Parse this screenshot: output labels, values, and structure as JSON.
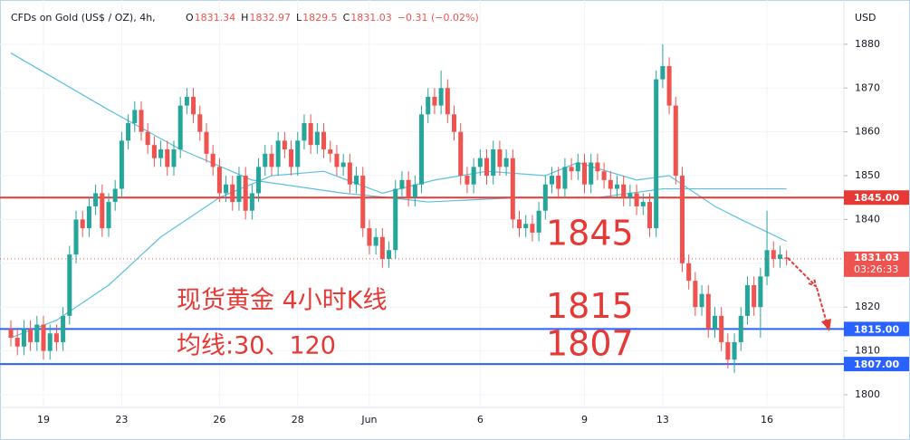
{
  "chart_data": {
    "type": "candlestick",
    "title": "CFDs on Gold (US$ / OZ), 4h,",
    "ohlc_labels": [
      "O",
      "H",
      "L",
      "C"
    ],
    "change": "−0.31 (−0.02%)",
    "y_unit": "USD",
    "up_color": "#26a69a",
    "down_color": "#ef5350",
    "xlim": [
      -1.67,
      127.8
    ],
    "ylim": [
      1797.1,
      1890.1
    ],
    "yticks": [
      1800,
      1810,
      1820,
      1830,
      1840,
      1850,
      1860,
      1870,
      1880
    ],
    "xticks": [
      {
        "value": 5,
        "label": "19"
      },
      {
        "value": 17,
        "label": "23"
      },
      {
        "value": 32,
        "label": "26"
      },
      {
        "value": 44,
        "label": "28"
      },
      {
        "value": 55,
        "label": "Jun"
      },
      {
        "value": 72,
        "label": "6"
      },
      {
        "value": 88,
        "label": "9"
      },
      {
        "value": 100,
        "label": "13"
      },
      {
        "value": 116,
        "label": "16"
      }
    ],
    "grid": true,
    "candles": {
      "open": [
        1815,
        1813,
        1811,
        1815,
        1812,
        1816,
        1810,
        1814,
        1812,
        1818,
        1832,
        1840,
        1838,
        1843,
        1846,
        1838,
        1844,
        1847,
        1858,
        1862,
        1865,
        1860,
        1857,
        1854,
        1856,
        1852,
        1856,
        1866,
        1868,
        1864,
        1860,
        1855,
        1852,
        1846,
        1848,
        1844,
        1850,
        1842,
        1846,
        1852,
        1855,
        1852,
        1858,
        1856,
        1852,
        1858,
        1862,
        1857,
        1860,
        1856,
        1855,
        1852,
        1853,
        1848,
        1850,
        1838,
        1834,
        1836,
        1831,
        1833,
        1847,
        1849,
        1845,
        1848,
        1864,
        1868,
        1866,
        1870,
        1864,
        1860,
        1850,
        1848,
        1852,
        1854,
        1850,
        1856,
        1852,
        1854,
        1840,
        1838,
        1839,
        1837,
        1842,
        1848,
        1850,
        1847,
        1852,
        1851,
        1853,
        1848,
        1853,
        1851,
        1849,
        1847,
        1848,
        1845,
        1846,
        1843,
        1844,
        1838,
        1872,
        1875,
        1866,
        1850,
        1830,
        1826,
        1820,
        1823,
        1815,
        1818,
        1812,
        1808,
        1812,
        1818,
        1825,
        1820,
        1827,
        1833,
        1831,
        1831.34
      ],
      "high": [
        1817,
        1815,
        1817,
        1817,
        1818,
        1818,
        1816,
        1816,
        1820,
        1834,
        1842,
        1842,
        1845,
        1848,
        1848,
        1846,
        1849,
        1860,
        1864,
        1867,
        1867,
        1862,
        1859,
        1858,
        1858,
        1858,
        1868,
        1870,
        1870,
        1866,
        1862,
        1857,
        1854,
        1850,
        1850,
        1852,
        1852,
        1848,
        1854,
        1857,
        1857,
        1860,
        1860,
        1858,
        1860,
        1864,
        1864,
        1862,
        1862,
        1858,
        1857,
        1855,
        1855,
        1852,
        1852,
        1840,
        1838,
        1838,
        1835,
        1849,
        1851,
        1851,
        1850,
        1866,
        1870,
        1870,
        1874,
        1872,
        1866,
        1862,
        1852,
        1854,
        1856,
        1856,
        1858,
        1858,
        1856,
        1856,
        1842,
        1841,
        1841,
        1844,
        1850,
        1852,
        1852,
        1854,
        1854,
        1855,
        1855,
        1855,
        1855,
        1853,
        1851,
        1850,
        1850,
        1848,
        1848,
        1846,
        1846,
        1874,
        1880,
        1877,
        1868,
        1852,
        1832,
        1828,
        1825,
        1825,
        1820,
        1820,
        1814,
        1814,
        1820,
        1827,
        1827,
        1829,
        1842,
        1835,
        1834,
        1832.97
      ],
      "low": [
        1811,
        1809,
        1809,
        1810,
        1810,
        1808,
        1808,
        1810,
        1810,
        1816,
        1830,
        1836,
        1836,
        1841,
        1836,
        1836,
        1842,
        1845,
        1856,
        1860,
        1858,
        1855,
        1852,
        1852,
        1850,
        1850,
        1854,
        1864,
        1862,
        1858,
        1853,
        1850,
        1844,
        1844,
        1842,
        1842,
        1840,
        1840,
        1844,
        1850,
        1850,
        1850,
        1854,
        1850,
        1850,
        1856,
        1855,
        1855,
        1854,
        1853,
        1850,
        1850,
        1846,
        1846,
        1836,
        1832,
        1832,
        1829,
        1829,
        1831,
        1845,
        1843,
        1843,
        1846,
        1862,
        1864,
        1864,
        1862,
        1858,
        1848,
        1846,
        1846,
        1850,
        1848,
        1848,
        1850,
        1850,
        1838,
        1836,
        1836,
        1835,
        1835,
        1840,
        1846,
        1845,
        1845,
        1849,
        1849,
        1846,
        1846,
        1849,
        1847,
        1845,
        1845,
        1843,
        1843,
        1841,
        1841,
        1836,
        1836,
        1870,
        1864,
        1848,
        1828,
        1824,
        1818,
        1818,
        1813,
        1813,
        1810,
        1806,
        1805,
        1810,
        1816,
        1818,
        1813,
        1825,
        1829,
        1829,
        1829.5
      ],
      "close": [
        1813,
        1811,
        1815,
        1812,
        1816,
        1810,
        1814,
        1812,
        1818,
        1832,
        1840,
        1838,
        1843,
        1846,
        1838,
        1844,
        1847,
        1858,
        1862,
        1865,
        1860,
        1857,
        1854,
        1856,
        1852,
        1856,
        1866,
        1868,
        1864,
        1860,
        1855,
        1852,
        1846,
        1848,
        1844,
        1850,
        1842,
        1846,
        1852,
        1855,
        1852,
        1858,
        1856,
        1852,
        1858,
        1862,
        1857,
        1860,
        1856,
        1855,
        1852,
        1853,
        1848,
        1850,
        1838,
        1834,
        1836,
        1831,
        1833,
        1847,
        1849,
        1845,
        1848,
        1864,
        1868,
        1866,
        1870,
        1864,
        1860,
        1850,
        1848,
        1852,
        1854,
        1850,
        1856,
        1852,
        1854,
        1840,
        1838,
        1839,
        1837,
        1842,
        1848,
        1850,
        1847,
        1852,
        1851,
        1853,
        1848,
        1853,
        1851,
        1849,
        1847,
        1848,
        1845,
        1846,
        1843,
        1844,
        1838,
        1872,
        1875,
        1866,
        1850,
        1830,
        1826,
        1820,
        1823,
        1815,
        1818,
        1812,
        1808,
        1812,
        1818,
        1825,
        1820,
        1827,
        1833,
        1831,
        1832,
        1831.03
      ]
    },
    "moving_averages": [
      {
        "color": "#5bc0de",
        "x": [
          0,
          15,
          26,
          37,
          51,
          58,
          64,
          78,
          90,
          100,
          106,
          116,
          119
        ],
        "values": [
          1878,
          1865,
          1856,
          1849,
          1846,
          1845,
          1844,
          1845,
          1845,
          1847,
          1847,
          1847,
          1847
        ]
      },
      {
        "color": "#5bc0de",
        "x": [
          0,
          7,
          15,
          23,
          32,
          40,
          48,
          57,
          65,
          73,
          82,
          87,
          96,
          101,
          108,
          112,
          119
        ],
        "values": [
          1813,
          1817,
          1825,
          1836,
          1845,
          1850,
          1851,
          1846,
          1849,
          1851,
          1850,
          1853,
          1849,
          1850,
          1843,
          1840,
          1835
        ]
      }
    ],
    "hlines": [
      {
        "value": 1845,
        "label": "1845.00",
        "color": "#e53935"
      },
      {
        "value": 1815,
        "label": "1815.00",
        "color": "#2962ff"
      },
      {
        "value": 1807,
        "label": "1807.00",
        "color": "#2962ff"
      }
    ],
    "countdown": "03:26:33",
    "annotations": [
      {
        "text": "1845",
        "value": 1845
      },
      {
        "text": "1815",
        "value": 1815
      },
      {
        "text": "1807",
        "value": 1807
      },
      {
        "text": "现货黄金 4小时K线"
      },
      {
        "text": "均线:30、120"
      }
    ]
  }
}
